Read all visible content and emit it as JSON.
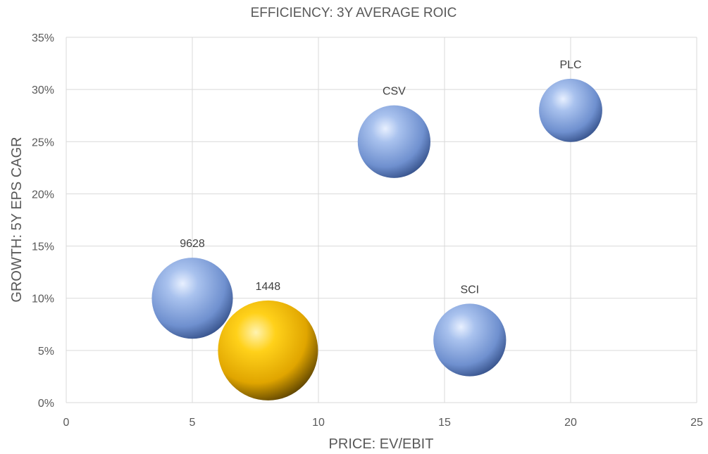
{
  "chart_data": {
    "type": "bubble",
    "title": "EFFICIENCY: 3Y AVERAGE ROIC",
    "xlabel": "PRICE: EV/EBIT",
    "ylabel": "GROWTH: 5Y EPS CAGR",
    "xlim": [
      0,
      25
    ],
    "ylim": [
      0,
      35
    ],
    "x_ticks": [
      0,
      5,
      10,
      15,
      20,
      25
    ],
    "x_tick_labels": [
      "0",
      "5",
      "10",
      "15",
      "20",
      "25"
    ],
    "y_ticks": [
      0,
      5,
      10,
      15,
      20,
      25,
      30,
      35
    ],
    "y_tick_labels": [
      "0%",
      "5%",
      "10%",
      "15%",
      "20%",
      "25%",
      "30%",
      "35%"
    ],
    "grid": true,
    "legend": "none",
    "colors": {
      "default": "#7a9bd6",
      "highlight": "#f2b705"
    },
    "points": [
      {
        "label": "9628",
        "x": 5,
        "y": 10,
        "size": 46,
        "highlight": false
      },
      {
        "label": "1448",
        "x": 8,
        "y": 5,
        "size": 70,
        "highlight": true
      },
      {
        "label": "CSV",
        "x": 13,
        "y": 25,
        "size": 37,
        "highlight": false
      },
      {
        "label": "SCI",
        "x": 16,
        "y": 6,
        "size": 37,
        "highlight": false
      },
      {
        "label": "PLC",
        "x": 20,
        "y": 28,
        "size": 28,
        "highlight": false
      }
    ]
  }
}
